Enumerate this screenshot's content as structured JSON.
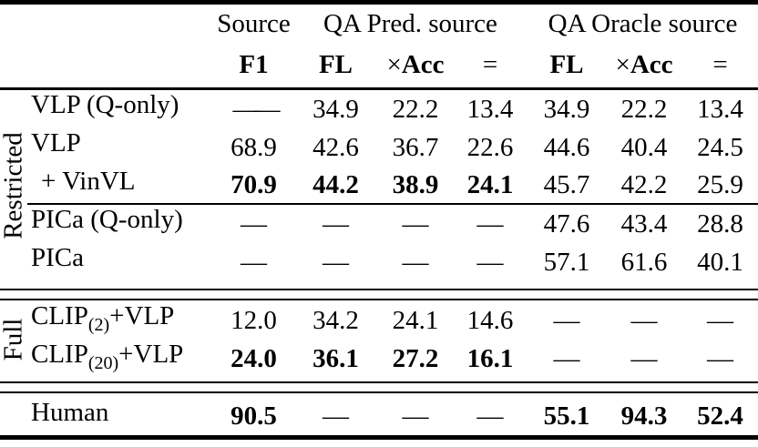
{
  "header": {
    "groups": {
      "source": "Source",
      "qa_pred": "QA Pred. source",
      "qa_oracle": "QA Oracle source"
    },
    "cols": {
      "f1": "F1",
      "fl": "FL",
      "times": "×",
      "acc": "Acc",
      "eq": "="
    }
  },
  "sections": {
    "restricted": "Restricted",
    "full": "Full"
  },
  "rows": [
    {
      "label": "VLP (Q-only)",
      "cells": [
        "——",
        "34.9",
        "22.2",
        "13.4",
        "34.9",
        "22.2",
        "13.4"
      ]
    },
    {
      "label": "VLP",
      "cells": [
        "68.9",
        "42.6",
        "36.7",
        "22.6",
        "44.6",
        "40.4",
        "24.5"
      ]
    },
    {
      "label": "+ VinVL",
      "cells": [
        "70.9",
        "44.2",
        "38.9",
        "24.1",
        "45.7",
        "42.2",
        "25.9"
      ]
    },
    {
      "label": "PICa (Q-only)",
      "cells": [
        "—",
        "—",
        "—",
        "—",
        "47.6",
        "43.4",
        "28.8"
      ]
    },
    {
      "label": "PICa",
      "cells": [
        "—",
        "—",
        "—",
        "—",
        "57.1",
        "61.6",
        "40.1"
      ]
    },
    {
      "label_pre": "CLIP",
      "label_sub": "(2)",
      "label_post": " +VLP",
      "cells": [
        "12.0",
        "34.2",
        "24.1",
        "14.6",
        "—",
        "—",
        "—"
      ]
    },
    {
      "label_pre": "CLIP",
      "label_sub": "(20)",
      "label_post": "+VLP",
      "cells": [
        "24.0",
        "36.1",
        "27.2",
        "16.1",
        "—",
        "—",
        "—"
      ]
    },
    {
      "label": "Human",
      "cells": [
        "90.5",
        "—",
        "—",
        "—",
        "55.1",
        "94.3",
        "52.4"
      ]
    }
  ]
}
